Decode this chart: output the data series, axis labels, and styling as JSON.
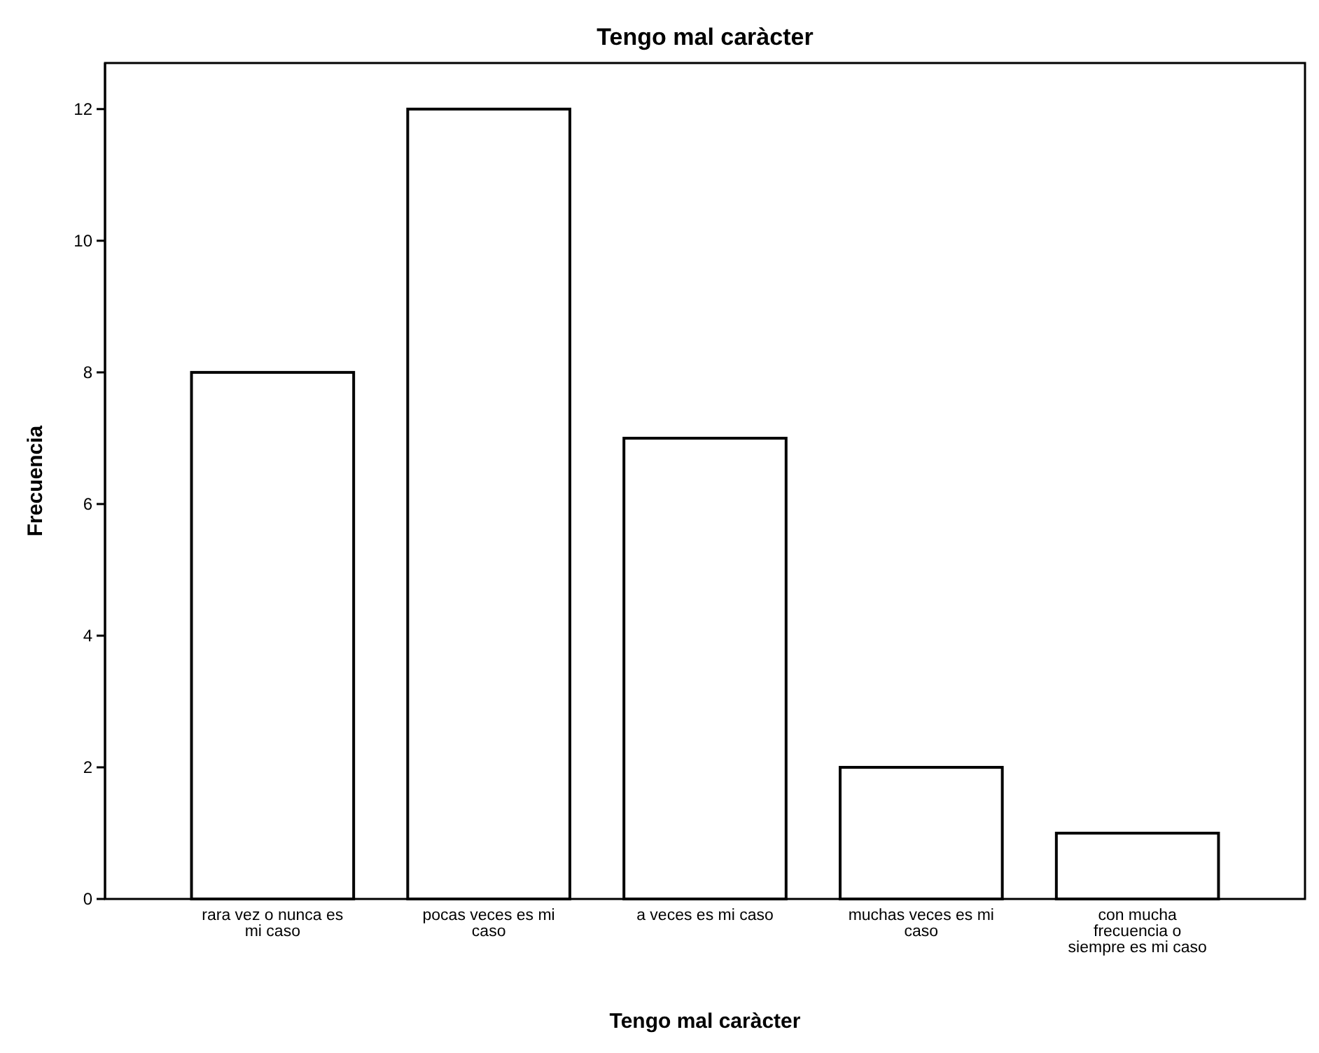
{
  "chart_data": {
    "type": "bar",
    "title": "Tengo mal caràcter",
    "xlabel": "Tengo mal caràcter",
    "ylabel": "Frecuencia",
    "categories": [
      "rara vez o nunca es mi caso",
      "pocas veces es mi caso",
      "a veces es mi caso",
      "muchas veces es mi caso",
      "con mucha frecuencia o siempre es mi caso"
    ],
    "values": [
      8,
      12,
      7,
      2,
      1
    ],
    "color": "#ffffff",
    "ylim": [
      0,
      12.7
    ],
    "yticks": [
      0,
      2,
      4,
      6,
      8,
      10,
      12
    ]
  }
}
